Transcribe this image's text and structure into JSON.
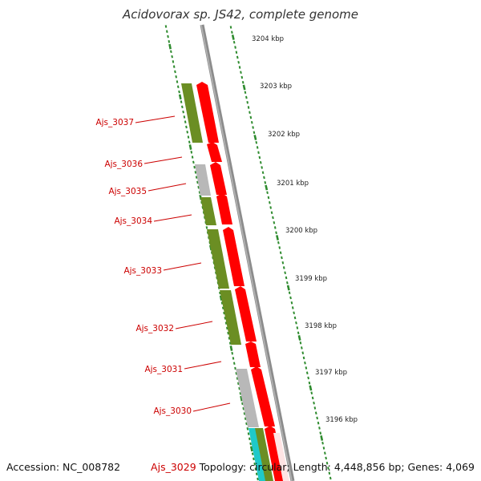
{
  "title": "Acidovorax sp. JS42, complete genome",
  "accession": "Accession: NC_008782",
  "topology": "Topology: circular; Length: 4,448,856 bp; Genes: 4,069",
  "colors": {
    "backbone": "#8c8c8c",
    "tick": "#2e8b2e",
    "forward_gene": "#ff0000",
    "reverse_cds": "#6b8e23",
    "gray_feature": "#b8b8b8",
    "cyan_feature": "#1fc9c9",
    "label": "#cc0000"
  },
  "scale": {
    "unit": "kbp",
    "marks": [
      {
        "kbp": 3204,
        "label": "3204 kbp"
      },
      {
        "kbp": 3203,
        "label": "3203 kbp"
      },
      {
        "kbp": 3202,
        "label": "3202 kbp"
      },
      {
        "kbp": 3201,
        "label": "3201 kbp"
      },
      {
        "kbp": 3200,
        "label": "3200 kbp"
      },
      {
        "kbp": 3199,
        "label": "3199 kbp"
      },
      {
        "kbp": 3198,
        "label": "3198 kbp"
      },
      {
        "kbp": 3197,
        "label": "3197 kbp"
      },
      {
        "kbp": 3196,
        "label": "3196 kbp"
      }
    ]
  },
  "genes": [
    {
      "label": "Ajs_3037"
    },
    {
      "label": "Ajs_3036"
    },
    {
      "label": "Ajs_3035"
    },
    {
      "label": "Ajs_3034"
    },
    {
      "label": "Ajs_3033"
    },
    {
      "label": "Ajs_3032"
    },
    {
      "label": "Ajs_3031"
    },
    {
      "label": "Ajs_3030"
    },
    {
      "label": "Ajs_3029"
    }
  ]
}
